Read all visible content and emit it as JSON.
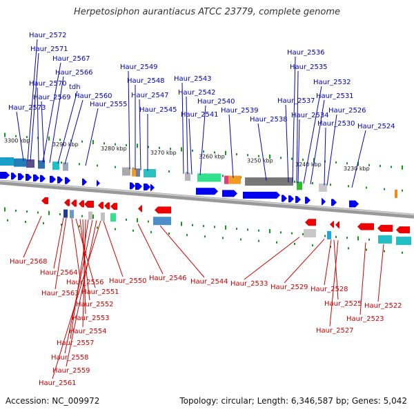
{
  "title": "Herpetosiphon aurantiacus ATCC 23779, complete genome",
  "accession": "Accession: NC_009972",
  "topology": "Topology: circular; Length: 6,346,587 bp; Genes: 5,042",
  "colors": {
    "top_label": "#0000bb",
    "bottom_label": "#cc0000",
    "forward_arrow": "#0000ee",
    "reverse_arrow": "#ee0000",
    "backbone": "#888888",
    "tick": "#119911"
  },
  "kbp_ticks": [
    "3300 kbp",
    "3290 kbp",
    "3280 kbp",
    "3270 kbp",
    "3260 kbp",
    "3250 kbp",
    "3240 kbp",
    "3230 kbp"
  ],
  "top_genes": [
    "Haur_2572",
    "Haur_2571",
    "Haur_2567",
    "Haur_2566",
    "Haur_2570",
    "tdh",
    "Haur_2569",
    "Haur_2560",
    "Haur_2573",
    "Haur_2555",
    "Haur_2549",
    "Haur_2548",
    "Haur_2547",
    "Haur_2545",
    "Haur_2543",
    "Haur_2542",
    "Haur_2541",
    "Haur_2540",
    "Haur_2539",
    "Haur_2538",
    "Haur_2536",
    "Haur_2535",
    "Haur_2532",
    "Haur_2531",
    "Haur_2537",
    "Haur_2534",
    "Haur_2530",
    "Haur_2526",
    "Haur_2524"
  ],
  "bottom_genes": [
    "Haur_2568",
    "Haur_2564",
    "Haur_2563",
    "Haur_2556",
    "Haur_2551",
    "Haur_2552",
    "Haur_2553",
    "Haur_2554",
    "Haur_2557",
    "Haur_2558",
    "Haur_2559",
    "Haur_2561",
    "Haur_2550",
    "Haur_2546",
    "Haur_2544",
    "Haur_2533",
    "Haur_2529",
    "Haur_2528",
    "Haur_2525",
    "Haur_2527",
    "Haur_2523",
    "Haur_2522"
  ]
}
